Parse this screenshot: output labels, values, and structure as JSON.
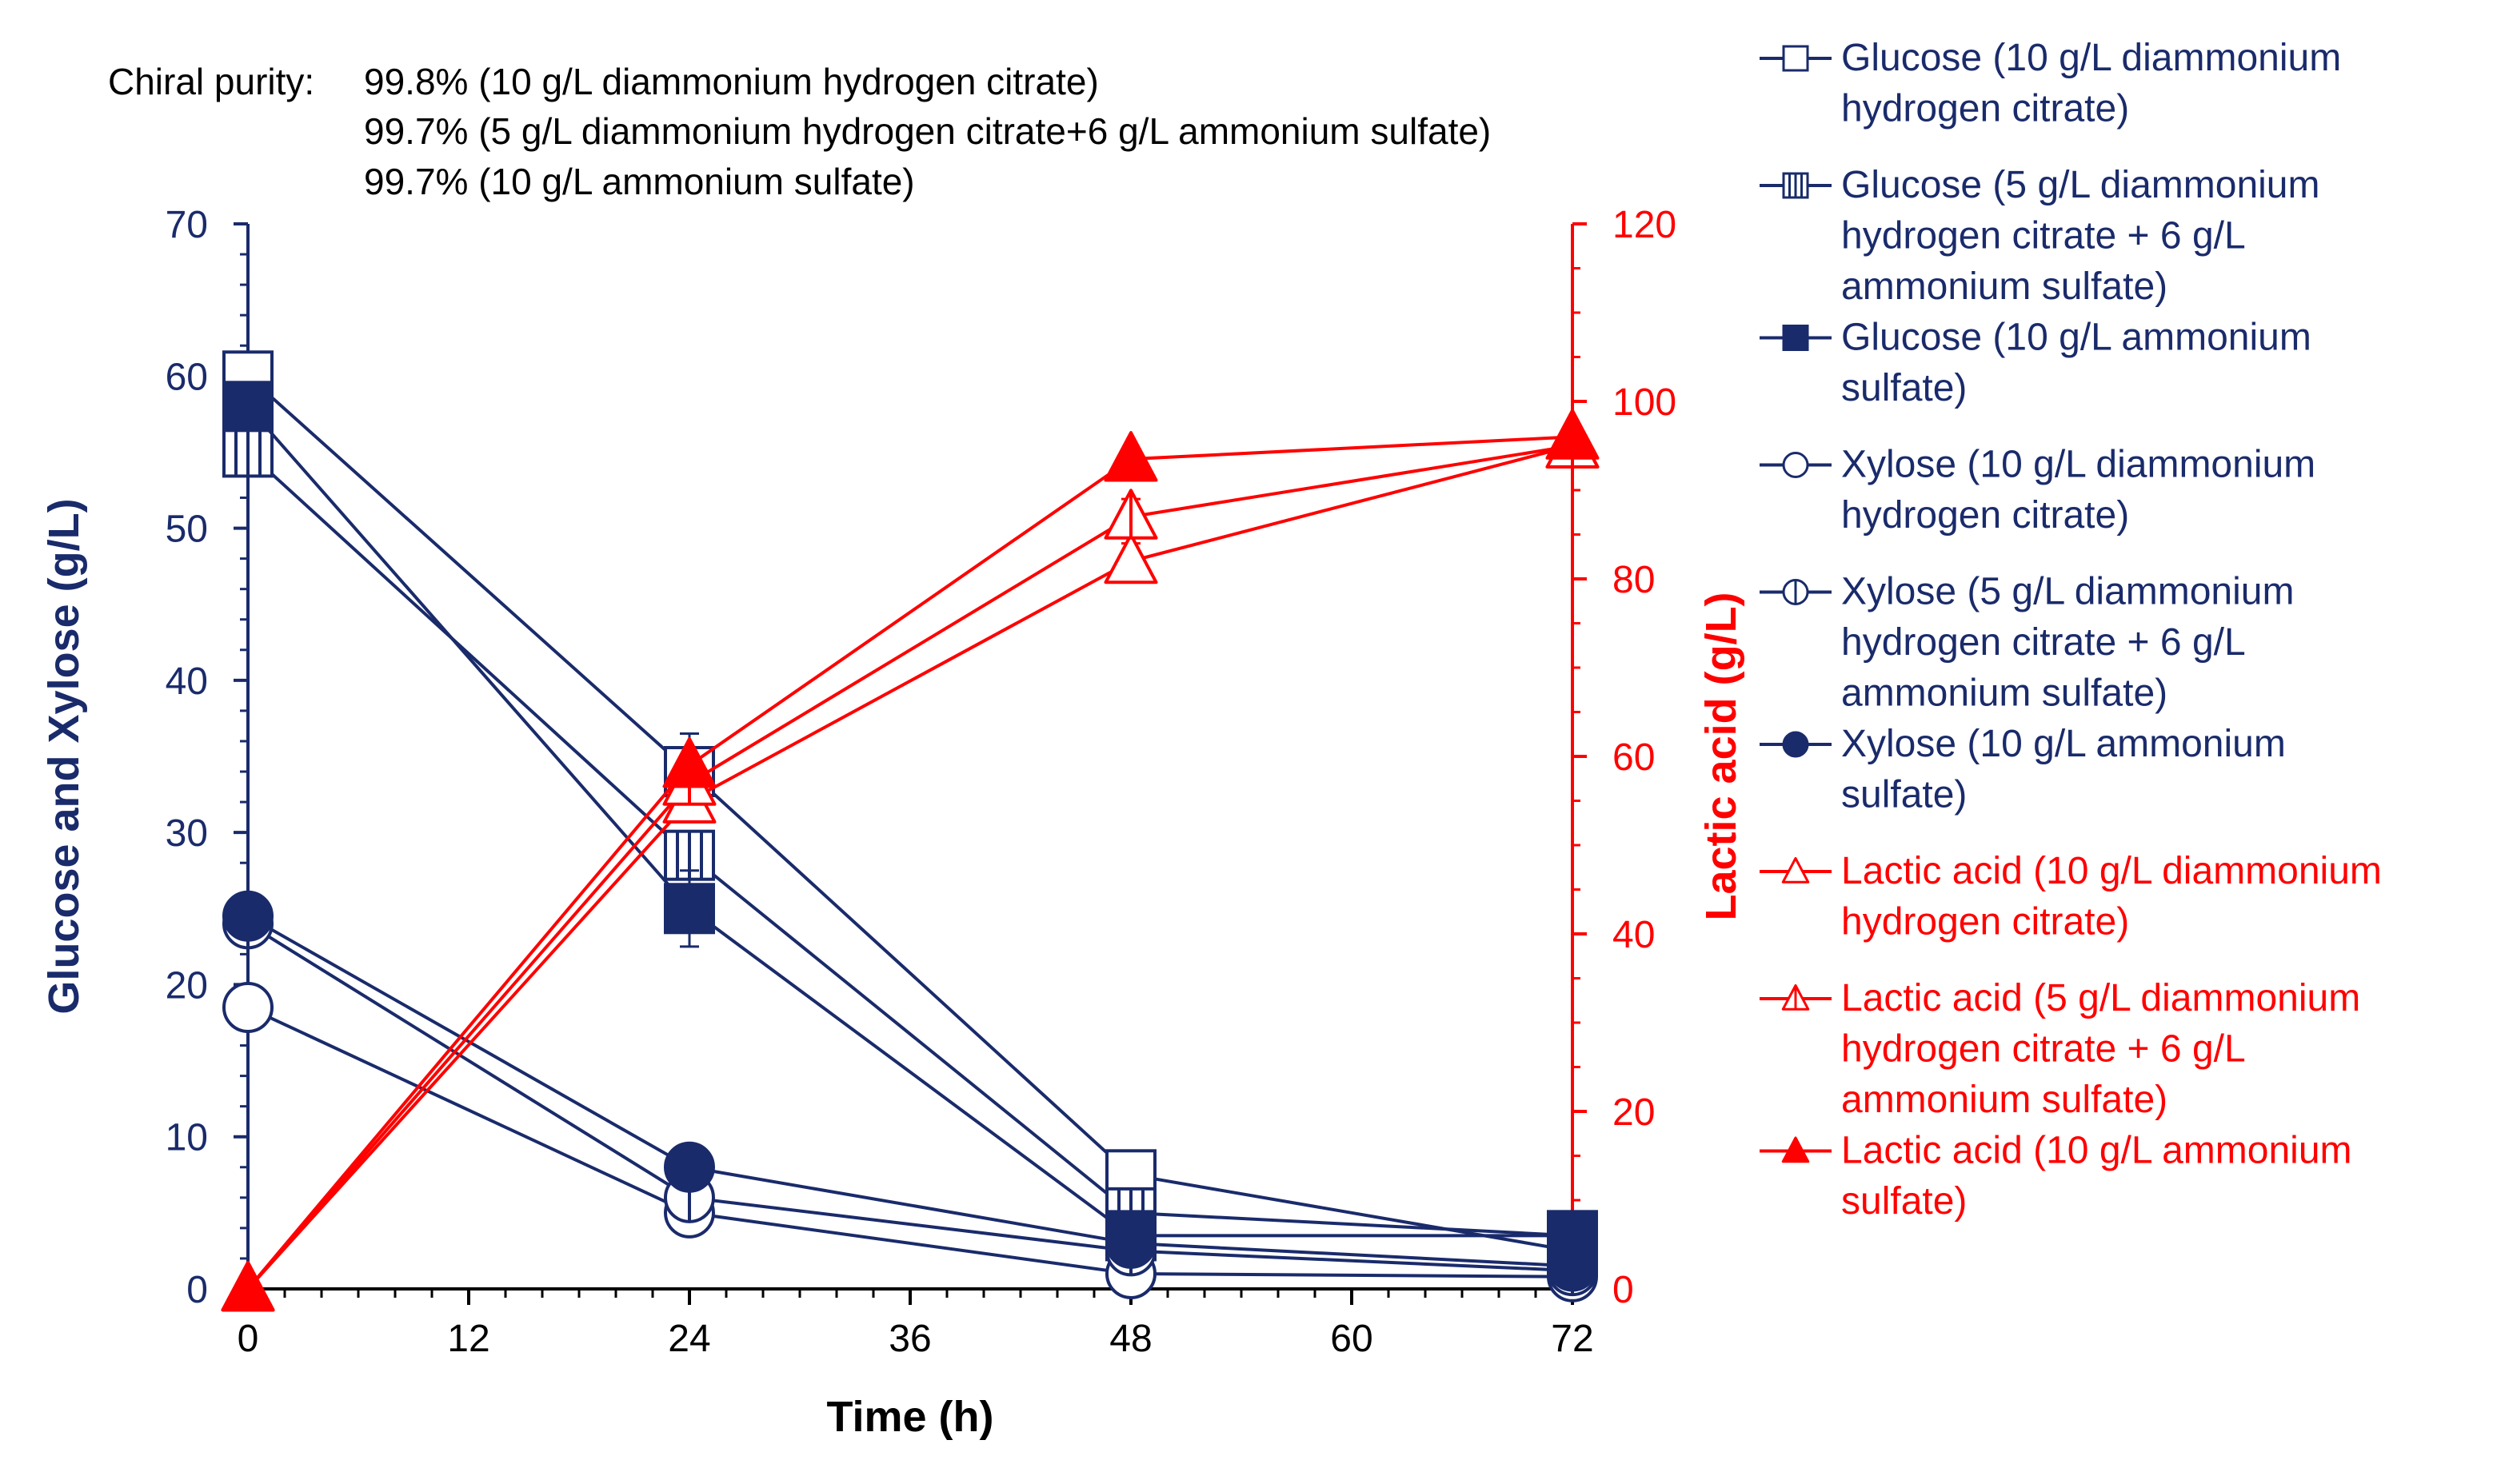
{
  "chart_data": {
    "type": "line",
    "title": "",
    "annotation": {
      "prefix": "Chiral purity:",
      "lines": [
        "99.8% (10 g/L diammonium hydrogen citrate)",
        "99.7% (5 g/L diammonium hydrogen citrate+6 g/L ammonium sulfate)",
        "99.7% (10 g/L ammonium sulfate)"
      ]
    },
    "xlabel": "Time (h)",
    "ylabel_left": "Glucose and Xylose (g/L)",
    "ylabel_right": "Lactic acid (g/L)",
    "xlim": [
      0,
      72
    ],
    "ylim_left": [
      0,
      70
    ],
    "ylim_right": [
      0,
      120
    ],
    "x_ticks": [
      0,
      12,
      24,
      36,
      48,
      60,
      72
    ],
    "y_left_ticks": [
      0,
      10,
      20,
      30,
      40,
      50,
      60,
      70
    ],
    "y_right_ticks": [
      0,
      20,
      40,
      60,
      80,
      100,
      120
    ],
    "x": [
      0,
      24,
      48,
      72
    ],
    "colors": {
      "navy": "#1a2b6b",
      "red": "#ff0000"
    },
    "series": [
      {
        "name": "Glucose (10 g/L diammonium hydrogen citrate)",
        "legend_lines": [
          "Glucose (10 g/L diammonium",
          "hydrogen citrate)"
        ],
        "axis": "left",
        "color": "#1a2b6b",
        "marker": "square-open",
        "values": [
          60,
          34,
          7.5,
          2.5
        ],
        "errors": [
          1.5,
          2.5,
          0.5,
          0
        ]
      },
      {
        "name": "Glucose (5 g/L diammonium hydrogen citrate + 6 g/L ammonium sulfate)",
        "legend_lines": [
          "Glucose (5 g/L diammonium",
          "hydrogen citrate + 6 g/L",
          "ammonium sulfate)"
        ],
        "axis": "left",
        "color": "#1a2b6b",
        "marker": "square-vbar",
        "values": [
          55,
          28.5,
          5,
          3.5
        ],
        "errors": [
          0,
          1.5,
          0.6,
          0
        ]
      },
      {
        "name": "Glucose (10 g/L ammonium sulfate)",
        "legend_lines": [
          "Glucose (10 g/L ammonium",
          "sulfate)"
        ],
        "axis": "left",
        "color": "#1a2b6b",
        "marker": "square-filled",
        "values": [
          58,
          25,
          3.5,
          3.5
        ],
        "errors": [
          0,
          2.5,
          0,
          0
        ]
      },
      {
        "name": "Xylose (10 g/L diammonium hydrogen citrate)",
        "legend_lines": [
          "Xylose (10 g/L diammonium",
          "hydrogen citrate)"
        ],
        "axis": "left",
        "color": "#1a2b6b",
        "marker": "circle-open",
        "values": [
          18.5,
          5,
          1,
          0.8
        ],
        "errors": [
          0,
          0,
          0,
          0
        ]
      },
      {
        "name": "Xylose (5 g/L diammonium hydrogen citrate + 6 g/L ammonium sulfate)",
        "legend_lines": [
          "Xylose (5 g/L diammonium",
          "hydrogen citrate + 6 g/L",
          "ammonium sulfate)"
        ],
        "axis": "left",
        "color": "#1a2b6b",
        "marker": "circle-vbar",
        "values": [
          24,
          6,
          2.5,
          1.2
        ],
        "errors": [
          0,
          0,
          0,
          0
        ]
      },
      {
        "name": "Xylose (10 g/L ammonium sulfate)",
        "legend_lines": [
          "Xylose (10 g/L ammonium",
          "sulfate)"
        ],
        "axis": "left",
        "color": "#1a2b6b",
        "marker": "circle-filled",
        "values": [
          24.5,
          8,
          3,
          1.5
        ],
        "errors": [
          0,
          0,
          0,
          0
        ]
      },
      {
        "name": "Lactic acid (10 g/L diammonium hydrogen citrate)",
        "legend_lines": [
          "Lactic acid (10 g/L diammonium",
          "hydrogen citrate)"
        ],
        "axis": "right",
        "color": "#ff0000",
        "marker": "triangle-open",
        "values": [
          0,
          55,
          82,
          95
        ],
        "errors": [
          0,
          0,
          2,
          0
        ]
      },
      {
        "name": "Lactic acid (5 g/L diammonium hydrogen citrate + 6 g/L ammonium sulfate)",
        "legend_lines": [
          "Lactic acid (5 g/L diammonium",
          "hydrogen citrate + 6 g/L",
          "ammonium sulfate)"
        ],
        "axis": "right",
        "color": "#ff0000",
        "marker": "triangle-vbar",
        "values": [
          0,
          57,
          87,
          95
        ],
        "errors": [
          0,
          0,
          2,
          0
        ]
      },
      {
        "name": "Lactic acid (10 g/L ammonium sulfate)",
        "legend_lines": [
          "Lactic acid (10 g/L ammonium",
          "sulfate)"
        ],
        "axis": "right",
        "color": "#ff0000",
        "marker": "triangle-filled",
        "values": [
          0,
          59,
          93.5,
          96
        ],
        "errors": [
          0,
          0,
          0,
          0
        ]
      }
    ]
  }
}
